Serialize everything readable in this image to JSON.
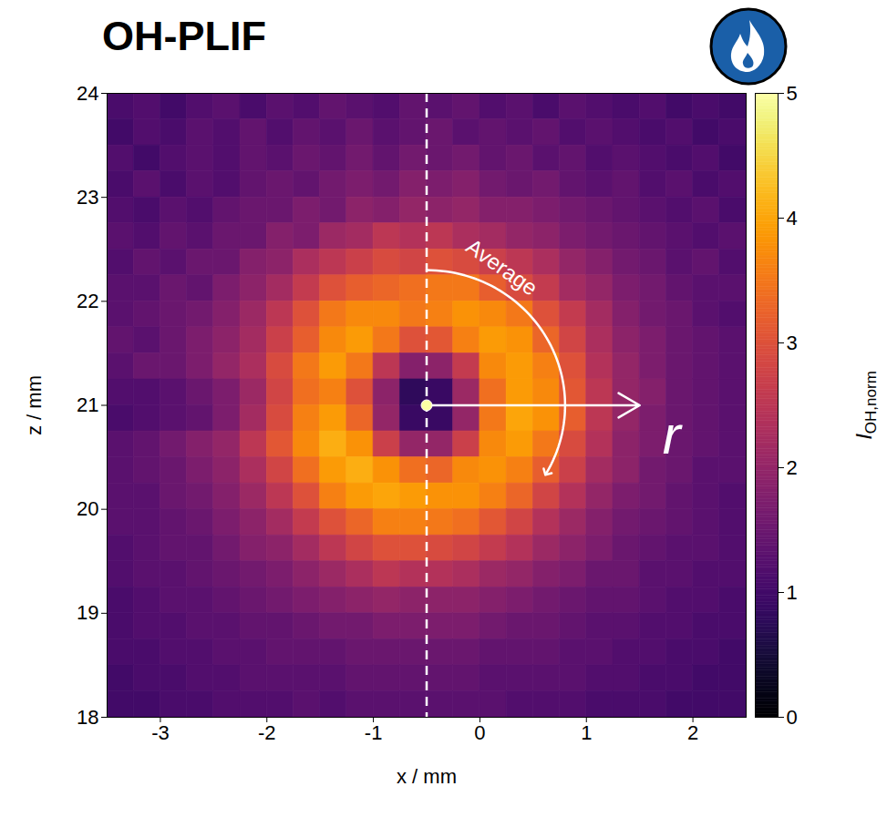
{
  "chart_data": {
    "type": "heatmap",
    "title": "OH-PLIF",
    "x_label": "x / mm",
    "y_label": "z / mm",
    "xlim": [
      -3.5,
      2.5
    ],
    "xticks": [
      -3,
      -2,
      -1,
      0,
      1,
      2
    ],
    "ylim": [
      18,
      24
    ],
    "yticks": [
      18,
      19,
      20,
      21,
      22,
      23,
      24
    ],
    "center": {
      "x": -0.5,
      "z": 21
    },
    "annotations": [
      "Average",
      "r"
    ],
    "x_edges": [
      -3.5,
      -3.25,
      -3,
      -2.75,
      -2.5,
      -2.25,
      -2,
      -1.75,
      -1.5,
      -1.25,
      -1,
      -0.75,
      -0.5,
      -0.25,
      0,
      0.25,
      0.5,
      0.75,
      1,
      1.25,
      1.5,
      1.75,
      2,
      2.25,
      2.5
    ],
    "z_edges": [
      24,
      23.75,
      23.5,
      23.25,
      23,
      22.75,
      22.5,
      22.25,
      22,
      21.75,
      21.5,
      21.25,
      21,
      20.75,
      20.5,
      20.25,
      20,
      19.75,
      19.5,
      19.25,
      19,
      18.75,
      18.5,
      18.25,
      18
    ],
    "cells": [
      [
        1.1,
        1.2,
        1.0,
        1.2,
        1.3,
        1.1,
        1.3,
        1.2,
        1.4,
        1.3,
        1.2,
        1.4,
        1.3,
        1.4,
        1.2,
        1.3,
        1.1,
        1.3,
        1.2,
        1.1,
        1.2,
        1.0,
        1.1,
        1.0
      ],
      [
        1.0,
        1.2,
        1.1,
        1.3,
        1.2,
        1.4,
        1.2,
        1.4,
        1.3,
        1.5,
        1.3,
        1.4,
        1.5,
        1.3,
        1.4,
        1.3,
        1.4,
        1.2,
        1.3,
        1.2,
        1.1,
        1.2,
        1.0,
        1.1
      ],
      [
        1.2,
        1.0,
        1.2,
        1.3,
        1.2,
        1.4,
        1.3,
        1.5,
        1.4,
        1.6,
        1.4,
        1.6,
        1.5,
        1.6,
        1.4,
        1.5,
        1.3,
        1.4,
        1.2,
        1.3,
        1.2,
        1.1,
        1.2,
        1.0
      ],
      [
        1.1,
        1.3,
        1.1,
        1.3,
        1.2,
        1.4,
        1.5,
        1.4,
        1.6,
        1.7,
        1.6,
        1.8,
        1.7,
        1.8,
        1.6,
        1.5,
        1.6,
        1.4,
        1.3,
        1.4,
        1.2,
        1.3,
        1.1,
        1.2
      ],
      [
        1.2,
        1.1,
        1.3,
        1.2,
        1.4,
        1.5,
        1.5,
        1.7,
        1.6,
        1.9,
        1.8,
        2.0,
        1.9,
        2.0,
        1.8,
        1.8,
        1.7,
        1.6,
        1.5,
        1.4,
        1.3,
        1.2,
        1.3,
        1.1
      ],
      [
        1.3,
        1.2,
        1.4,
        1.3,
        1.5,
        1.5,
        1.8,
        1.7,
        2.1,
        2.2,
        2.5,
        2.4,
        2.5,
        2.3,
        2.2,
        2.0,
        1.9,
        1.7,
        1.6,
        1.5,
        1.4,
        1.3,
        1.2,
        1.3
      ],
      [
        1.2,
        1.4,
        1.3,
        1.5,
        1.5,
        1.8,
        1.9,
        2.3,
        2.5,
        2.7,
        2.9,
        2.8,
        3.0,
        2.9,
        2.7,
        2.5,
        2.3,
        2.0,
        1.8,
        1.6,
        1.5,
        1.3,
        1.4,
        1.2
      ],
      [
        1.3,
        1.3,
        1.5,
        1.4,
        1.7,
        1.9,
        2.2,
        2.6,
        3.0,
        3.2,
        3.3,
        3.4,
        3.5,
        3.5,
        3.2,
        2.9,
        2.6,
        2.2,
        2.0,
        1.7,
        1.6,
        1.4,
        1.3,
        1.3
      ],
      [
        1.3,
        1.4,
        1.5,
        1.6,
        1.8,
        2.1,
        2.5,
        3.0,
        3.5,
        3.7,
        3.7,
        3.5,
        3.6,
        3.8,
        3.7,
        3.5,
        3.0,
        2.6,
        2.2,
        1.8,
        1.6,
        1.5,
        1.3,
        1.2
      ],
      [
        1.4,
        1.3,
        1.5,
        1.7,
        1.9,
        2.2,
        2.7,
        3.2,
        3.7,
        3.9,
        3.5,
        3.0,
        3.1,
        3.6,
        3.9,
        3.8,
        3.3,
        2.8,
        2.3,
        1.9,
        1.7,
        1.5,
        1.4,
        1.3
      ],
      [
        1.3,
        1.5,
        1.5,
        1.7,
        2.0,
        2.3,
        2.9,
        3.5,
        3.9,
        3.5,
        2.5,
        1.8,
        1.9,
        2.6,
        3.7,
        3.9,
        3.6,
        3.0,
        2.4,
        2.0,
        1.7,
        1.5,
        1.4,
        1.3
      ],
      [
        1.2,
        1.2,
        1.3,
        1.5,
        1.7,
        2.1,
        2.8,
        3.4,
        3.6,
        3.0,
        1.9,
        0.8,
        0.9,
        2.1,
        3.4,
        3.9,
        3.7,
        3.1,
        2.5,
        2.0,
        1.8,
        1.5,
        1.4,
        1.3
      ],
      [
        1.1,
        1.2,
        1.3,
        1.4,
        1.7,
        2.2,
        2.9,
        3.6,
        3.9,
        3.3,
        2.0,
        0.9,
        0.9,
        2.0,
        3.5,
        4.0,
        3.8,
        3.2,
        2.5,
        2.0,
        1.7,
        1.5,
        1.4,
        1.3
      ],
      [
        1.3,
        1.4,
        1.6,
        1.8,
        2.0,
        2.5,
        3.1,
        3.7,
        4.1,
        3.8,
        2.7,
        2.0,
        2.0,
        2.7,
        3.7,
        3.9,
        3.5,
        2.9,
        2.4,
        1.9,
        1.7,
        1.5,
        1.4,
        1.3
      ],
      [
        1.3,
        1.4,
        1.5,
        1.7,
        1.9,
        2.3,
        2.8,
        3.4,
        3.9,
        4.1,
        3.8,
        3.4,
        3.3,
        3.7,
        3.8,
        3.6,
        3.2,
        2.7,
        2.2,
        1.9,
        1.6,
        1.5,
        1.3,
        1.3
      ],
      [
        1.3,
        1.3,
        1.5,
        1.6,
        1.8,
        2.1,
        2.5,
        3.0,
        3.6,
        3.9,
        4.0,
        3.9,
        3.8,
        3.8,
        3.6,
        3.3,
        2.8,
        2.4,
        2.0,
        1.7,
        1.6,
        1.4,
        1.3,
        1.2
      ],
      [
        1.3,
        1.3,
        1.4,
        1.5,
        1.7,
        1.9,
        2.2,
        2.6,
        3.0,
        3.3,
        3.6,
        3.6,
        3.5,
        3.4,
        3.1,
        2.8,
        2.4,
        2.1,
        1.8,
        1.6,
        1.5,
        1.4,
        1.3,
        1.2
      ],
      [
        1.2,
        1.3,
        1.4,
        1.4,
        1.6,
        1.8,
        1.9,
        2.2,
        2.5,
        2.8,
        3.0,
        3.0,
        2.9,
        2.8,
        2.6,
        2.4,
        2.1,
        1.9,
        1.7,
        1.5,
        1.4,
        1.3,
        1.3,
        1.2
      ],
      [
        1.2,
        1.3,
        1.3,
        1.4,
        1.5,
        1.6,
        1.7,
        1.9,
        2.1,
        2.3,
        2.5,
        2.4,
        2.4,
        2.3,
        2.1,
        2.0,
        1.8,
        1.7,
        1.5,
        1.5,
        1.3,
        1.3,
        1.2,
        1.2
      ],
      [
        1.1,
        1.2,
        1.3,
        1.3,
        1.4,
        1.5,
        1.6,
        1.7,
        1.8,
        1.9,
        2.0,
        1.9,
        1.9,
        1.9,
        1.8,
        1.7,
        1.6,
        1.5,
        1.4,
        1.4,
        1.3,
        1.2,
        1.2,
        1.1
      ],
      [
        1.1,
        1.2,
        1.2,
        1.3,
        1.3,
        1.4,
        1.4,
        1.5,
        1.6,
        1.6,
        1.7,
        1.7,
        1.7,
        1.7,
        1.6,
        1.5,
        1.5,
        1.4,
        1.3,
        1.3,
        1.2,
        1.2,
        1.1,
        1.1
      ],
      [
        1.1,
        1.1,
        1.2,
        1.2,
        1.3,
        1.3,
        1.4,
        1.4,
        1.4,
        1.5,
        1.5,
        1.5,
        1.5,
        1.5,
        1.4,
        1.4,
        1.4,
        1.3,
        1.3,
        1.2,
        1.2,
        1.1,
        1.1,
        1.0
      ],
      [
        1.0,
        1.1,
        1.1,
        1.2,
        1.2,
        1.3,
        1.3,
        1.3,
        1.3,
        1.4,
        1.4,
        1.4,
        1.4,
        1.4,
        1.3,
        1.3,
        1.3,
        1.3,
        1.2,
        1.2,
        1.1,
        1.1,
        1.0,
        1.0
      ],
      [
        1.0,
        1.0,
        1.1,
        1.1,
        1.2,
        1.2,
        1.2,
        1.3,
        1.2,
        1.3,
        1.3,
        1.3,
        1.3,
        1.3,
        1.3,
        1.2,
        1.2,
        1.2,
        1.1,
        1.1,
        1.1,
        1.0,
        1.0,
        1.0
      ]
    ],
    "colorbar": {
      "label": "I",
      "label_subscript": "OH,norm",
      "range": [
        0,
        5
      ],
      "ticks": [
        0,
        1,
        2,
        3,
        4,
        5
      ]
    }
  }
}
